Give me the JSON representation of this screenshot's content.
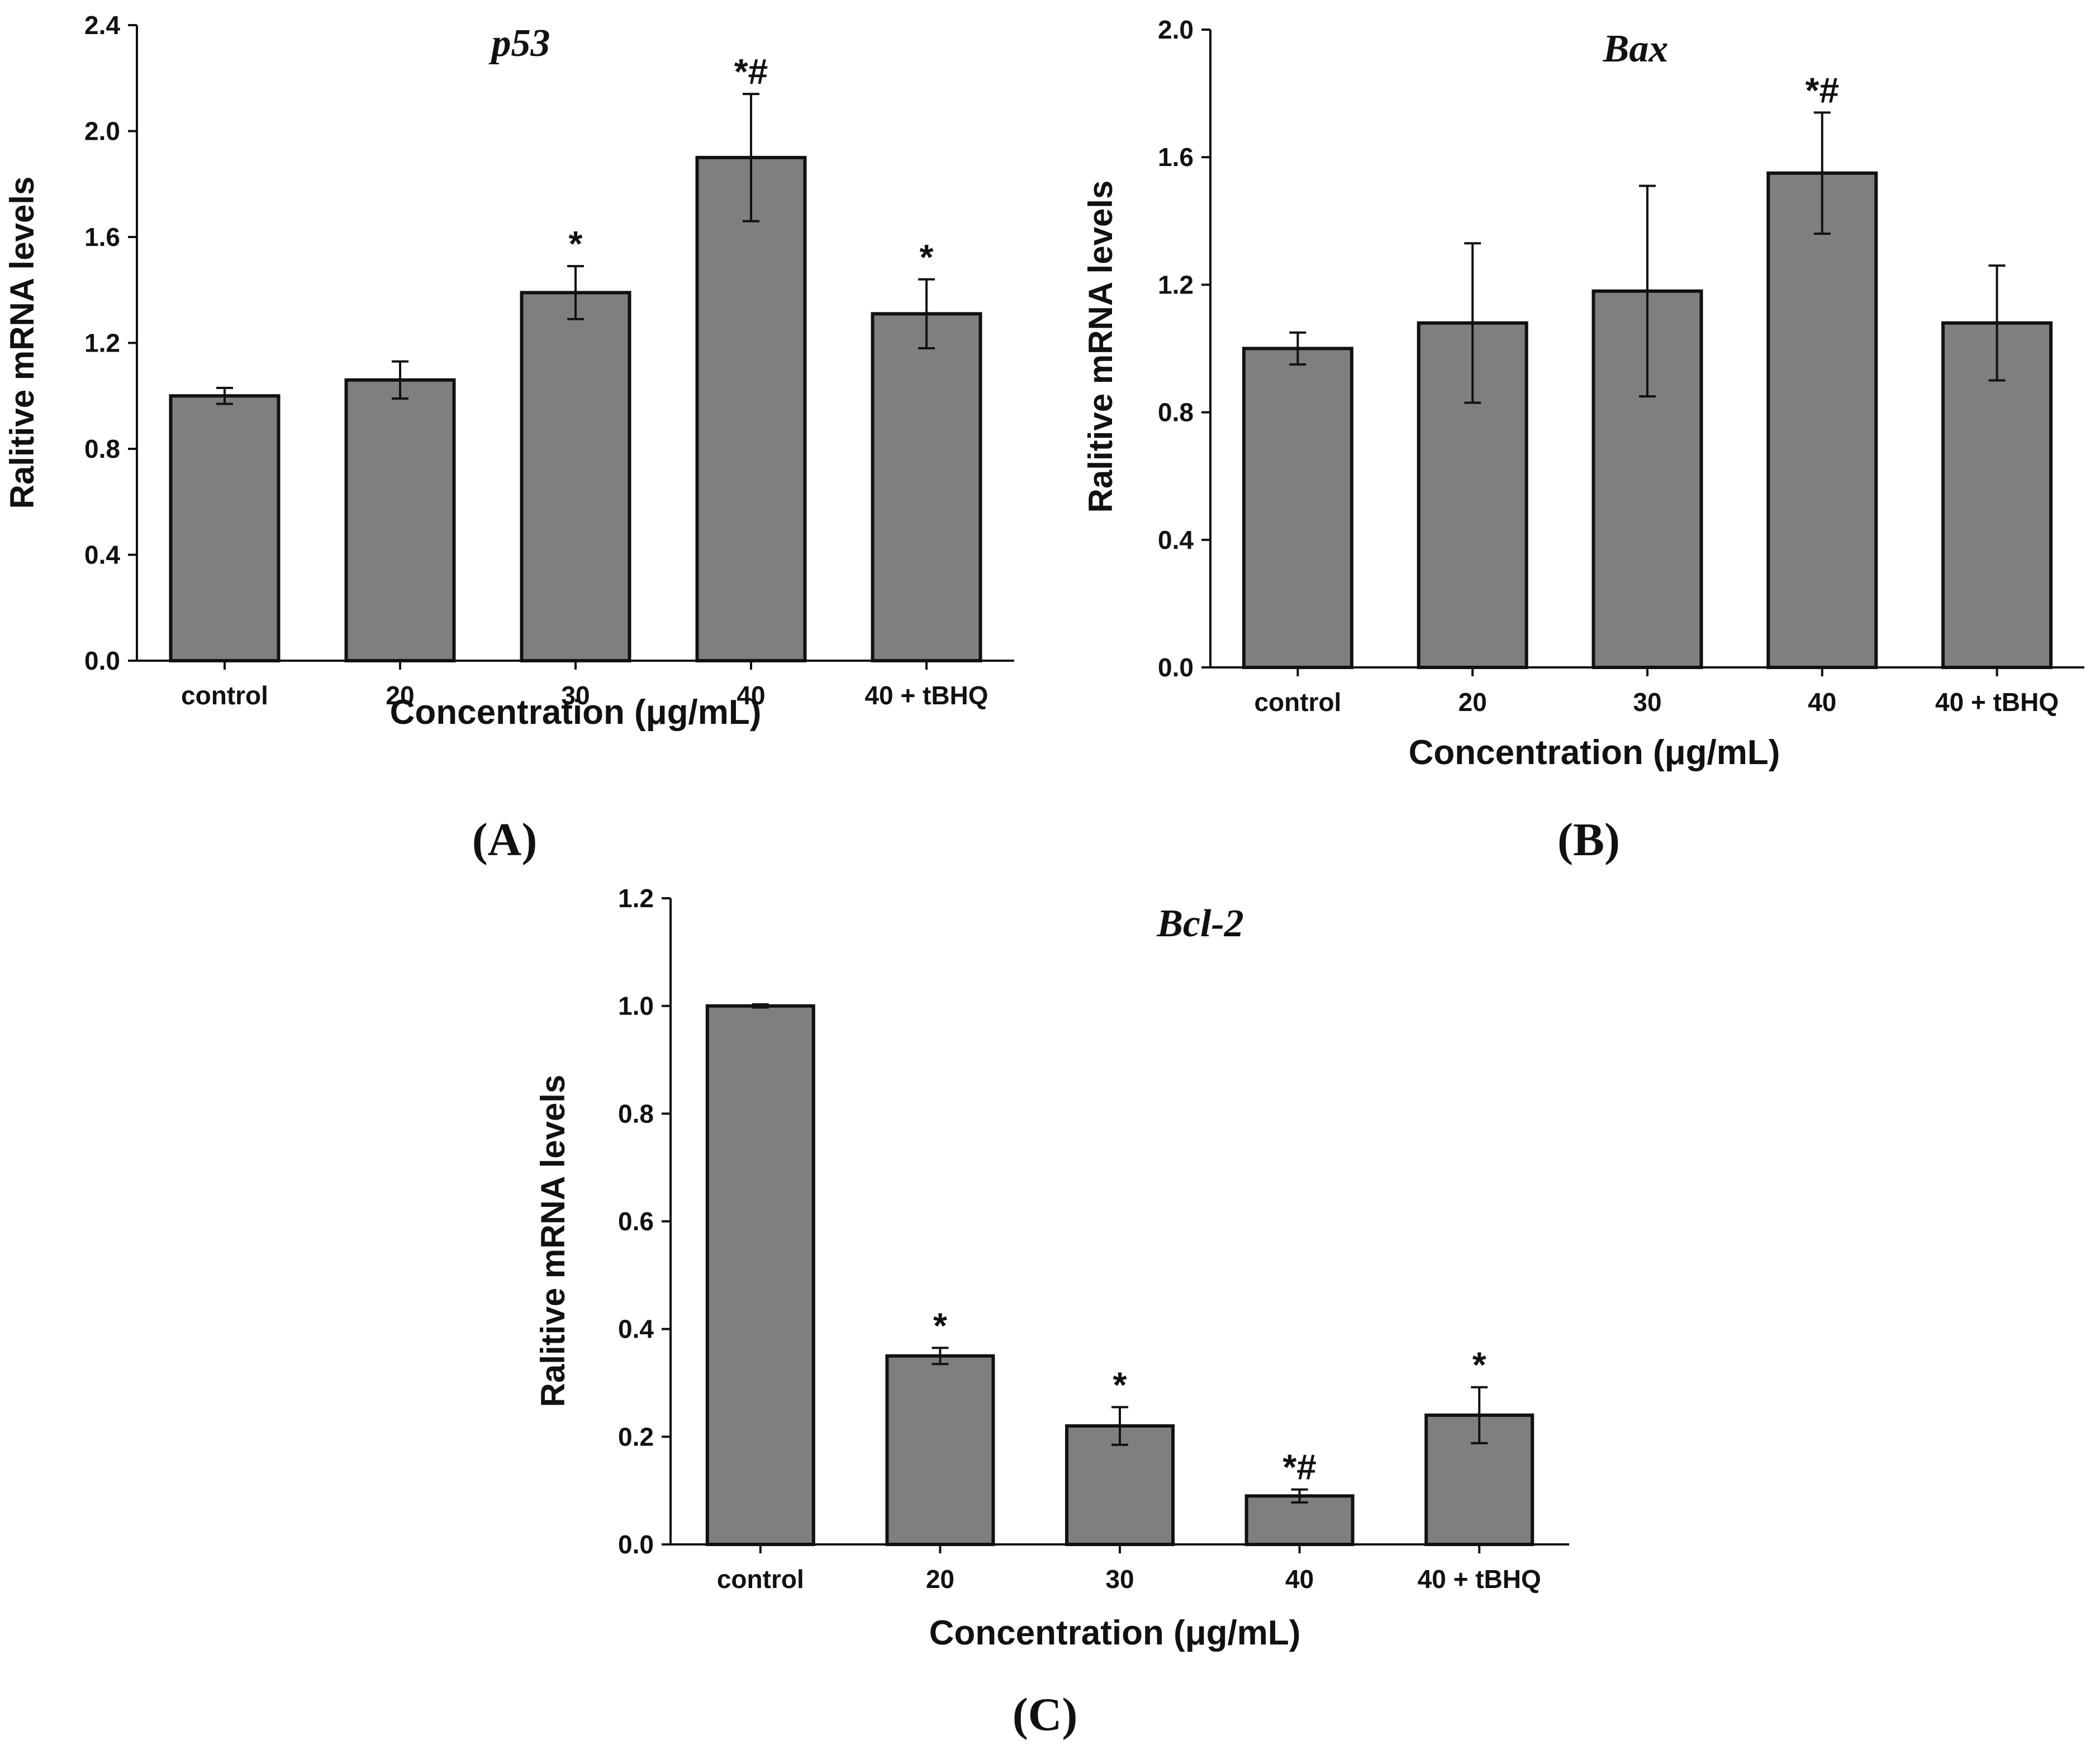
{
  "figure": {
    "xlabel": "Concentration (μg/mL)",
    "ylabel": "Ralitive mRNA levels",
    "bar_color": "#7f7f7f",
    "edge_color": "#111111"
  },
  "chart_data": [
    {
      "id": "A",
      "panel_label": "(A)",
      "type": "bar",
      "title": "p53",
      "xlabel": "Concentration (μg/mL)",
      "ylabel": "Ralitive mRNA levels",
      "ylim": [
        0,
        2.4
      ],
      "yticks": [
        0.0,
        0.4,
        0.8,
        1.2,
        1.6,
        2.0,
        2.4
      ],
      "ytick_labels": [
        "0.0",
        "0.4",
        "0.8",
        "1.2",
        "1.6",
        "2.0",
        "2.4"
      ],
      "categories": [
        "control",
        "20",
        "30",
        "40",
        "40 + tBHQ"
      ],
      "values": [
        1.0,
        1.06,
        1.39,
        1.9,
        1.31
      ],
      "errors": [
        0.03,
        0.07,
        0.1,
        0.24,
        0.13
      ],
      "annotations": [
        "",
        "",
        "*",
        "*#",
        "*"
      ]
    },
    {
      "id": "B",
      "panel_label": "(B)",
      "type": "bar",
      "title": "Bax",
      "xlabel": "Concentration (μg/mL)",
      "ylabel": "Ralitive mRNA levels",
      "ylim": [
        0,
        2.0
      ],
      "yticks": [
        0.0,
        0.4,
        0.8,
        1.2,
        1.6,
        2.0
      ],
      "ytick_labels": [
        "0.0",
        "0.4",
        "0.8",
        "1.2",
        "1.6",
        "2.0"
      ],
      "categories": [
        "control",
        "20",
        "30",
        "40",
        "40 + tBHQ"
      ],
      "values": [
        1.0,
        1.08,
        1.18,
        1.55,
        1.08
      ],
      "errors": [
        0.05,
        0.25,
        0.33,
        0.19,
        0.18
      ],
      "annotations": [
        "",
        "",
        "",
        "*#",
        ""
      ]
    },
    {
      "id": "C",
      "panel_label": "(C)",
      "type": "bar",
      "title": "Bcl-2",
      "xlabel": "Concentration (μg/mL)",
      "ylabel": "Ralitive mRNA levels",
      "ylim": [
        0,
        1.2
      ],
      "yticks": [
        0.0,
        0.2,
        0.4,
        0.6,
        0.8,
        1.0,
        1.2
      ],
      "ytick_labels": [
        "0.0",
        "0.2",
        "0.4",
        "0.6",
        "0.8",
        "1.0",
        "1.2"
      ],
      "categories": [
        "control",
        "20",
        "30",
        "40",
        "40 + tBHQ"
      ],
      "values": [
        1.0,
        0.35,
        0.22,
        0.09,
        0.24
      ],
      "errors": [
        0.003,
        0.015,
        0.035,
        0.012,
        0.052
      ],
      "annotations": [
        "",
        "*",
        "*",
        "*#",
        "*"
      ]
    }
  ]
}
